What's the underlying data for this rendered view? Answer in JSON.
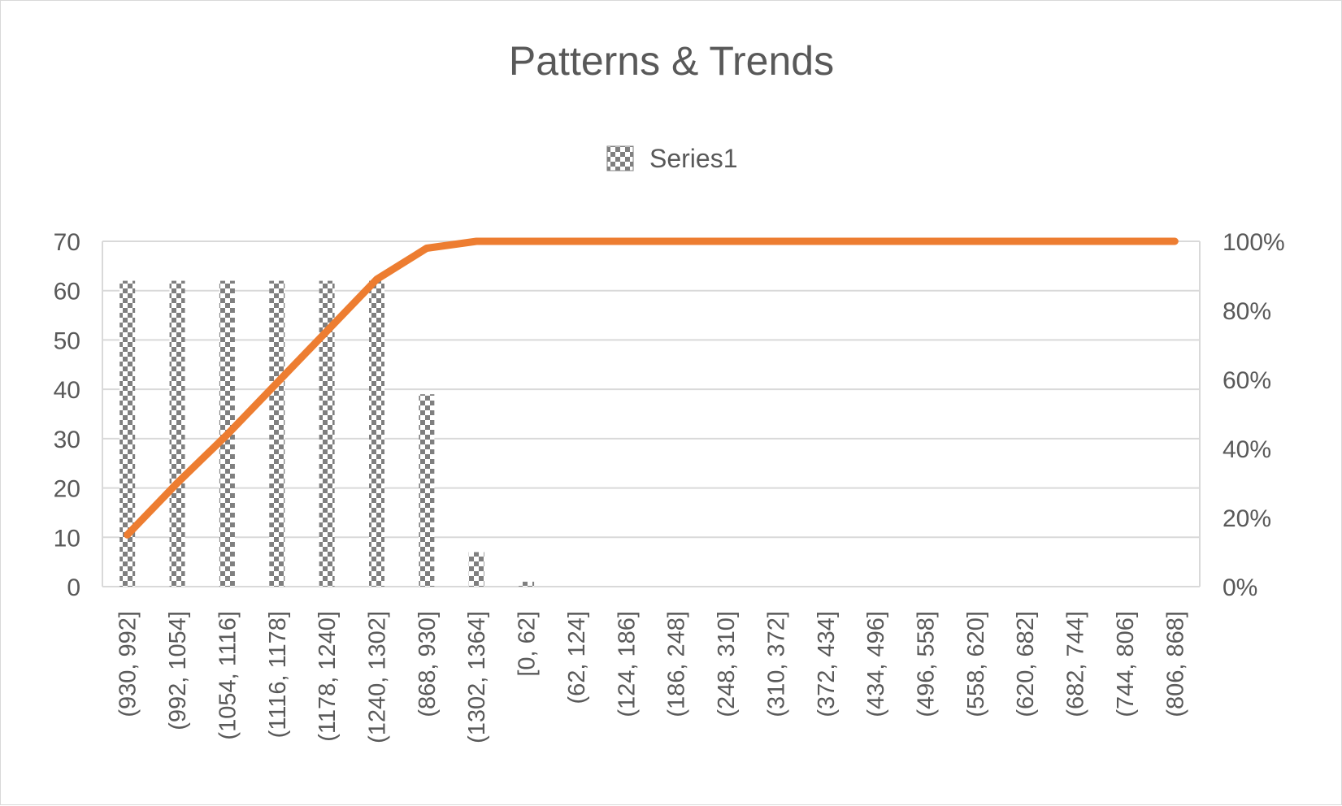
{
  "chart_data": {
    "type": "bar",
    "title": "Patterns & Trends",
    "legend": {
      "position": "top",
      "entries": [
        "Series1"
      ]
    },
    "categories": [
      "(930, 992]",
      "(992, 1054]",
      "(1054, 1116]",
      "(1116, 1178]",
      "(1178, 1240]",
      "(1240, 1302]",
      "(868, 930]",
      "(1302, 1364]",
      "[0, 62]",
      "(62, 124]",
      "(124, 186]",
      "(186, 248]",
      "(248, 310]",
      "(310, 372]",
      "(372, 434]",
      "(434, 496]",
      "(496, 558]",
      "(558, 620]",
      "(620, 682]",
      "(682, 744]",
      "(744, 806]",
      "(806, 868]"
    ],
    "series": [
      {
        "name": "Series1",
        "type": "bar",
        "axis": "primary",
        "pattern": "checkerboard",
        "color": "#7f7f7f",
        "values": [
          62,
          62,
          62,
          62,
          62,
          62,
          39,
          7,
          1,
          0,
          0,
          0,
          0,
          0,
          0,
          0,
          0,
          0,
          0,
          0,
          0,
          0
        ]
      },
      {
        "type": "line",
        "axis": "secondary",
        "color": "#ed7d31",
        "values": [
          0.15,
          0.3,
          0.44,
          0.59,
          0.74,
          0.89,
          0.98,
          1.0,
          1.0,
          1.0,
          1.0,
          1.0,
          1.0,
          1.0,
          1.0,
          1.0,
          1.0,
          1.0,
          1.0,
          1.0,
          1.0,
          1.0
        ]
      }
    ],
    "y_primary": {
      "min": 0,
      "max": 70,
      "ticks": [
        "0",
        "10",
        "20",
        "30",
        "40",
        "50",
        "60",
        "70"
      ]
    },
    "y_secondary": {
      "min": 0,
      "max": 1,
      "ticks": [
        "0%",
        "20%",
        "40%",
        "60%",
        "80%",
        "100%"
      ]
    },
    "grid": true,
    "colors": {
      "gridline": "#d9d9d9",
      "text": "#595959",
      "line": "#ed7d31",
      "bar": "#7f7f7f"
    }
  }
}
